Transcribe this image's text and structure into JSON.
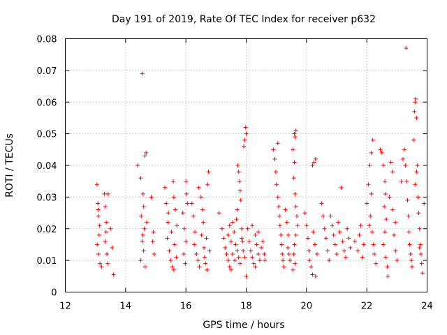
{
  "chart_data": {
    "type": "scatter",
    "title": "Day 191 of 2019, Rate Of TEC Index for receiver p632",
    "xlabel": "GPS time / hours",
    "ylabel": "ROTI / TECUs",
    "xlim": [
      12,
      24
    ],
    "ylim": [
      0,
      0.08
    ],
    "xticks": [
      "12",
      "14",
      "16",
      "18",
      "20",
      "22",
      "24"
    ],
    "yticks": [
      "0",
      "0.01",
      "0.02",
      "0.03",
      "0.04",
      "0.05",
      "0.06",
      "0.07",
      "0.08"
    ],
    "xtick_values": [
      12,
      14,
      16,
      18,
      20,
      22,
      24
    ],
    "ytick_values": [
      0,
      0.01,
      0.02,
      0.03,
      0.04,
      0.05,
      0.06,
      0.07,
      0.08
    ],
    "grid": true,
    "marker": "+",
    "color": "#ff0000",
    "series": [
      {
        "name": "ROTI",
        "points": [
          [
            13.05,
            0.034
          ],
          [
            13.08,
            0.028
          ],
          [
            13.1,
            0.024
          ],
          [
            13.12,
            0.018
          ],
          [
            13.1,
            0.012
          ],
          [
            13.15,
            0.009
          ],
          [
            13.2,
            0.008
          ],
          [
            13.06,
            0.015
          ],
          [
            13.14,
            0.021
          ],
          [
            13.09,
            0.026
          ],
          [
            13.3,
            0.031
          ],
          [
            13.33,
            0.027
          ],
          [
            13.36,
            0.022
          ],
          [
            13.32,
            0.016
          ],
          [
            13.38,
            0.012
          ],
          [
            13.41,
            0.009
          ],
          [
            13.35,
            0.019
          ],
          [
            13.42,
            0.031
          ],
          [
            13.5,
            0.02
          ],
          [
            13.55,
            0.014
          ],
          [
            13.6,
            0.0055
          ],
          [
            14.4,
            0.04
          ],
          [
            14.55,
            0.069
          ],
          [
            14.5,
            0.036
          ],
          [
            14.58,
            0.031
          ],
          [
            14.6,
            0.027
          ],
          [
            14.52,
            0.024
          ],
          [
            14.62,
            0.02
          ],
          [
            14.55,
            0.016
          ],
          [
            14.6,
            0.013
          ],
          [
            14.5,
            0.01
          ],
          [
            14.65,
            0.008
          ],
          [
            14.68,
            0.044
          ],
          [
            14.64,
            0.043
          ],
          [
            14.57,
            0.018
          ],
          [
            14.7,
            0.022
          ],
          [
            14.85,
            0.03
          ],
          [
            14.9,
            0.016
          ],
          [
            14.95,
            0.012
          ],
          [
            14.92,
            0.019
          ],
          [
            15.3,
            0.033
          ],
          [
            15.35,
            0.028
          ],
          [
            15.4,
            0.022
          ],
          [
            15.38,
            0.017
          ],
          [
            15.45,
            0.013
          ],
          [
            15.5,
            0.01
          ],
          [
            15.55,
            0.008
          ],
          [
            15.58,
            0.035
          ],
          [
            15.6,
            0.03
          ],
          [
            15.65,
            0.026
          ],
          [
            15.7,
            0.021
          ],
          [
            15.62,
            0.015
          ],
          [
            15.68,
            0.011
          ],
          [
            15.6,
            0.007
          ],
          [
            15.52,
            0.019
          ],
          [
            15.42,
            0.025
          ],
          [
            15.9,
            0.025
          ],
          [
            15.95,
            0.02
          ],
          [
            16.0,
            0.016
          ],
          [
            15.93,
            0.012
          ],
          [
            15.98,
            0.009
          ],
          [
            16.0,
            0.035
          ],
          [
            16.02,
            0.031
          ],
          [
            16.05,
            0.028
          ],
          [
            16.2,
            0.028
          ],
          [
            16.25,
            0.024
          ],
          [
            16.3,
            0.019
          ],
          [
            16.28,
            0.015
          ],
          [
            16.35,
            0.012
          ],
          [
            16.4,
            0.01
          ],
          [
            16.45,
            0.008
          ],
          [
            16.42,
            0.033
          ],
          [
            16.5,
            0.03
          ],
          [
            16.55,
            0.026
          ],
          [
            16.58,
            0.022
          ],
          [
            16.52,
            0.018
          ],
          [
            16.6,
            0.014
          ],
          [
            16.62,
            0.011
          ],
          [
            16.65,
            0.009
          ],
          [
            16.7,
            0.007
          ],
          [
            16.75,
            0.038
          ],
          [
            16.72,
            0.034
          ],
          [
            16.68,
            0.017
          ],
          [
            16.78,
            0.013
          ],
          [
            17.1,
            0.025
          ],
          [
            17.2,
            0.02
          ],
          [
            17.25,
            0.017
          ],
          [
            17.3,
            0.014
          ],
          [
            17.35,
            0.012
          ],
          [
            17.4,
            0.01
          ],
          [
            17.45,
            0.008
          ],
          [
            17.5,
            0.016
          ],
          [
            17.55,
            0.022
          ],
          [
            17.6,
            0.019
          ],
          [
            17.65,
            0.015
          ],
          [
            17.7,
            0.013
          ],
          [
            17.75,
            0.011
          ],
          [
            17.8,
            0.009
          ],
          [
            17.85,
            0.017
          ],
          [
            17.5,
            0.007
          ],
          [
            17.4,
            0.018
          ],
          [
            17.45,
            0.021
          ],
          [
            17.55,
            0.012
          ],
          [
            17.62,
            0.01
          ],
          [
            17.72,
            0.04
          ],
          [
            17.75,
            0.038
          ],
          [
            17.78,
            0.035
          ],
          [
            17.8,
            0.032
          ],
          [
            17.82,
            0.029
          ],
          [
            17.7,
            0.026
          ],
          [
            17.68,
            0.023
          ],
          [
            17.85,
            0.02
          ],
          [
            17.88,
            0.016
          ],
          [
            17.9,
            0.013
          ],
          [
            17.95,
            0.011
          ],
          [
            17.92,
            0.046
          ],
          [
            17.95,
            0.048
          ],
          [
            17.98,
            0.052
          ],
          [
            18.0,
            0.05
          ],
          [
            18.05,
            0.02
          ],
          [
            18.1,
            0.016
          ],
          [
            18.15,
            0.013
          ],
          [
            18.2,
            0.011
          ],
          [
            18.25,
            0.009
          ],
          [
            18.3,
            0.018
          ],
          [
            18.35,
            0.015
          ],
          [
            18.4,
            0.012
          ],
          [
            18.45,
            0.01
          ],
          [
            18.5,
            0.014
          ],
          [
            18.55,
            0.016
          ],
          [
            18.6,
            0.012
          ],
          [
            18.62,
            0.01
          ],
          [
            18.3,
            0.008
          ],
          [
            18.0,
            0.005
          ],
          [
            18.2,
            0.021
          ],
          [
            18.4,
            0.019
          ],
          [
            18.9,
            0.045
          ],
          [
            18.95,
            0.042
          ],
          [
            18.98,
            0.038
          ],
          [
            19.0,
            0.034
          ],
          [
            19.05,
            0.03
          ],
          [
            19.08,
            0.027
          ],
          [
            19.1,
            0.024
          ],
          [
            19.12,
            0.021
          ],
          [
            19.15,
            0.018
          ],
          [
            19.18,
            0.015
          ],
          [
            19.2,
            0.012
          ],
          [
            19.22,
            0.01
          ],
          [
            19.25,
            0.008
          ],
          [
            19.3,
            0.026
          ],
          [
            19.35,
            0.022
          ],
          [
            19.4,
            0.018
          ],
          [
            19.38,
            0.014
          ],
          [
            19.42,
            0.012
          ],
          [
            19.45,
            0.01
          ],
          [
            19.05,
            0.047
          ],
          [
            19.55,
            0.045
          ],
          [
            19.6,
            0.05
          ],
          [
            19.62,
            0.049
          ],
          [
            19.65,
            0.051
          ],
          [
            19.6,
            0.041
          ],
          [
            19.58,
            0.036
          ],
          [
            19.62,
            0.031
          ],
          [
            19.65,
            0.027
          ],
          [
            19.68,
            0.024
          ],
          [
            19.7,
            0.021
          ],
          [
            19.65,
            0.018
          ],
          [
            19.6,
            0.015
          ],
          [
            19.58,
            0.012
          ],
          [
            19.62,
            0.009
          ],
          [
            19.55,
            0.007
          ],
          [
            19.95,
            0.025
          ],
          [
            20.0,
            0.021
          ],
          [
            20.05,
            0.017
          ],
          [
            20.08,
            0.013
          ],
          [
            20.1,
            0.01
          ],
          [
            20.15,
            0.008
          ],
          [
            20.2,
            0.04
          ],
          [
            20.25,
            0.041
          ],
          [
            20.3,
            0.042
          ],
          [
            20.2,
            0.0055
          ],
          [
            20.3,
            0.005
          ],
          [
            20.22,
            0.019
          ],
          [
            20.28,
            0.015
          ],
          [
            20.35,
            0.012
          ],
          [
            20.5,
            0.028
          ],
          [
            20.55,
            0.024
          ],
          [
            20.6,
            0.02
          ],
          [
            20.65,
            0.017
          ],
          [
            20.7,
            0.013
          ],
          [
            20.75,
            0.01
          ],
          [
            20.8,
            0.024
          ],
          [
            20.85,
            0.021
          ],
          [
            20.9,
            0.018
          ],
          [
            20.95,
            0.015
          ],
          [
            21.0,
            0.012
          ],
          [
            21.05,
            0.022
          ],
          [
            21.1,
            0.019
          ],
          [
            21.15,
            0.033
          ],
          [
            21.2,
            0.016
          ],
          [
            21.25,
            0.013
          ],
          [
            21.3,
            0.011
          ],
          [
            21.35,
            0.02
          ],
          [
            21.4,
            0.017
          ],
          [
            21.45,
            0.014
          ],
          [
            21.6,
            0.016
          ],
          [
            21.7,
            0.013
          ],
          [
            21.75,
            0.018
          ],
          [
            21.8,
            0.021
          ],
          [
            21.85,
            0.011
          ],
          [
            21.9,
            0.015
          ],
          [
            22.0,
            0.028
          ],
          [
            22.05,
            0.034
          ],
          [
            22.1,
            0.04
          ],
          [
            22.15,
            0.044
          ],
          [
            22.2,
            0.048
          ],
          [
            22.12,
            0.024
          ],
          [
            22.18,
            0.019
          ],
          [
            22.22,
            0.015
          ],
          [
            22.25,
            0.012
          ],
          [
            22.3,
            0.009
          ],
          [
            22.08,
            0.021
          ],
          [
            22.15,
            0.031
          ],
          [
            22.45,
            0.045
          ],
          [
            22.5,
            0.044
          ],
          [
            22.55,
            0.04
          ],
          [
            22.6,
            0.035
          ],
          [
            22.62,
            0.031
          ],
          [
            22.58,
            0.027
          ],
          [
            22.65,
            0.023
          ],
          [
            22.6,
            0.019
          ],
          [
            22.55,
            0.015
          ],
          [
            22.62,
            0.011
          ],
          [
            22.68,
            0.008
          ],
          [
            22.7,
            0.005
          ],
          [
            22.75,
            0.03
          ],
          [
            22.8,
            0.041
          ],
          [
            22.85,
            0.026
          ],
          [
            22.9,
            0.018
          ],
          [
            22.95,
            0.013
          ],
          [
            23.0,
            0.01
          ],
          [
            22.85,
            0.038
          ],
          [
            22.95,
            0.022
          ],
          [
            23.15,
            0.035
          ],
          [
            23.2,
            0.042
          ],
          [
            23.25,
            0.045
          ],
          [
            23.28,
            0.04
          ],
          [
            23.3,
            0.077
          ],
          [
            23.32,
            0.035
          ],
          [
            23.35,
            0.029
          ],
          [
            23.38,
            0.024
          ],
          [
            23.4,
            0.019
          ],
          [
            23.42,
            0.015
          ],
          [
            23.45,
            0.012
          ],
          [
            23.48,
            0.01
          ],
          [
            23.5,
            0.008
          ],
          [
            23.55,
            0.048
          ],
          [
            23.58,
            0.057
          ],
          [
            23.6,
            0.06
          ],
          [
            23.62,
            0.061
          ],
          [
            23.65,
            0.055
          ],
          [
            23.68,
            0.04
          ],
          [
            23.7,
            0.03
          ],
          [
            23.72,
            0.025
          ],
          [
            23.75,
            0.02
          ],
          [
            23.78,
            0.015
          ],
          [
            23.8,
            0.012
          ],
          [
            23.82,
            0.009
          ],
          [
            23.85,
            0.006
          ],
          [
            23.6,
            0.034
          ],
          [
            23.65,
            0.038
          ],
          [
            23.75,
            0.014
          ],
          [
            23.9,
            0.028
          ]
        ]
      }
    ]
  }
}
